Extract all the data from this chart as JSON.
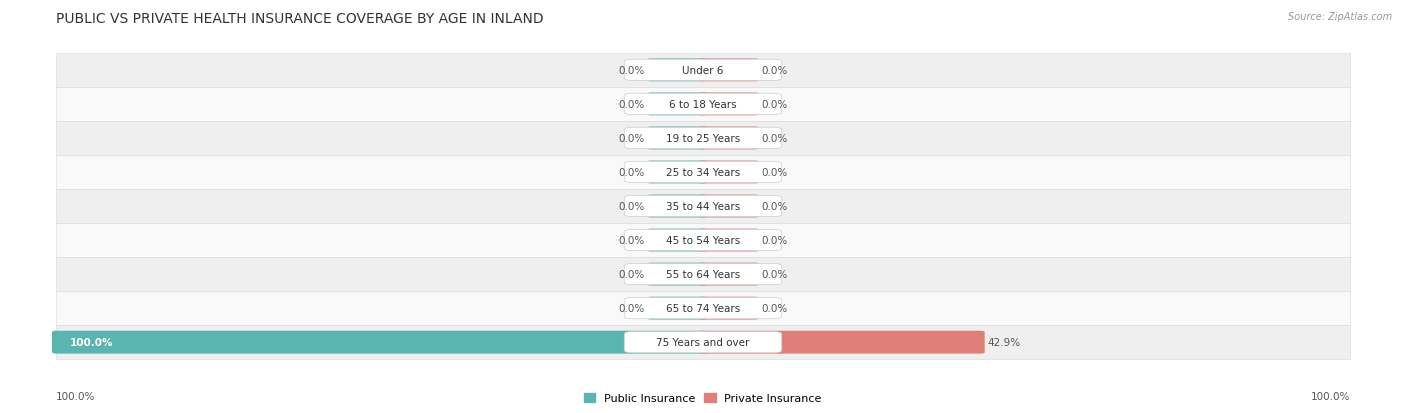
{
  "title": "PUBLIC VS PRIVATE HEALTH INSURANCE COVERAGE BY AGE IN INLAND",
  "source": "Source: ZipAtlas.com",
  "categories": [
    "Under 6",
    "6 to 18 Years",
    "19 to 25 Years",
    "25 to 34 Years",
    "35 to 44 Years",
    "45 to 54 Years",
    "55 to 64 Years",
    "65 to 74 Years",
    "75 Years and over"
  ],
  "public_values": [
    0.0,
    0.0,
    0.0,
    0.0,
    0.0,
    0.0,
    0.0,
    0.0,
    100.0
  ],
  "private_values": [
    0.0,
    0.0,
    0.0,
    0.0,
    0.0,
    0.0,
    0.0,
    0.0,
    42.9
  ],
  "public_color": "#5ab5b0",
  "private_color": "#e07f77",
  "row_colors": [
    "#efefef",
    "#f9f9f9"
  ],
  "row_border_color": "#d8d8d8",
  "label_bg_color": "#ffffff",
  "label_border_color": "#cccccc",
  "title_fontsize": 10,
  "source_fontsize": 7,
  "bar_label_fontsize": 7.5,
  "category_fontsize": 7.5,
  "legend_fontsize": 8,
  "max_value": 100.0,
  "stub_bar_width": 8.0,
  "bottom_left_label": "100.0%",
  "bottom_right_label": "100.0%"
}
